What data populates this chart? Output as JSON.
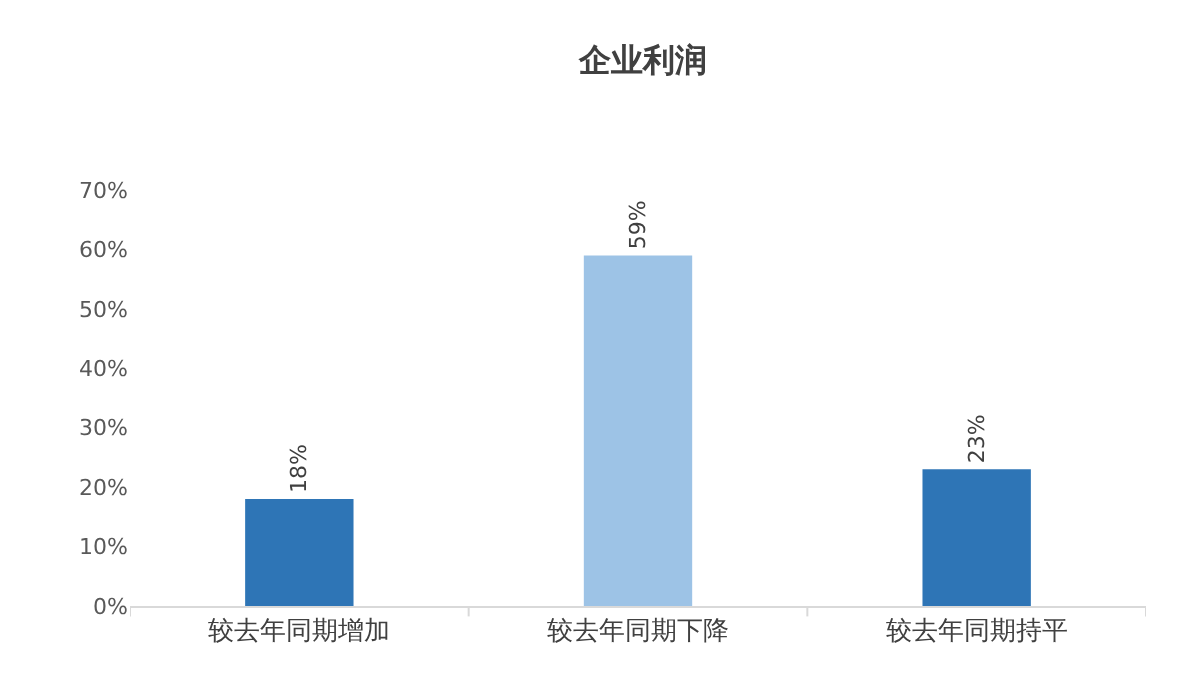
{
  "chart_data": {
    "type": "bar",
    "title": "企业利润",
    "categories": [
      "较去年同期增加",
      "较去年同期下降",
      "较去年同期持平"
    ],
    "values": [
      18,
      59,
      23
    ],
    "colors": [
      "#2e75b6",
      "#9dc3e6",
      "#2e75b6"
    ],
    "value_labels": [
      "18%",
      "59%",
      "23%"
    ],
    "ylim": [
      0,
      70
    ],
    "yticks": [
      {
        "value": 0,
        "label": "0%"
      },
      {
        "value": 10,
        "label": "10%"
      },
      {
        "value": 20,
        "label": "20%"
      },
      {
        "value": 30,
        "label": "30%"
      },
      {
        "value": 40,
        "label": "40%"
      },
      {
        "value": 50,
        "label": "50%"
      },
      {
        "value": 60,
        "label": "60%"
      },
      {
        "value": 70,
        "label": "70%"
      }
    ],
    "grid": false
  }
}
